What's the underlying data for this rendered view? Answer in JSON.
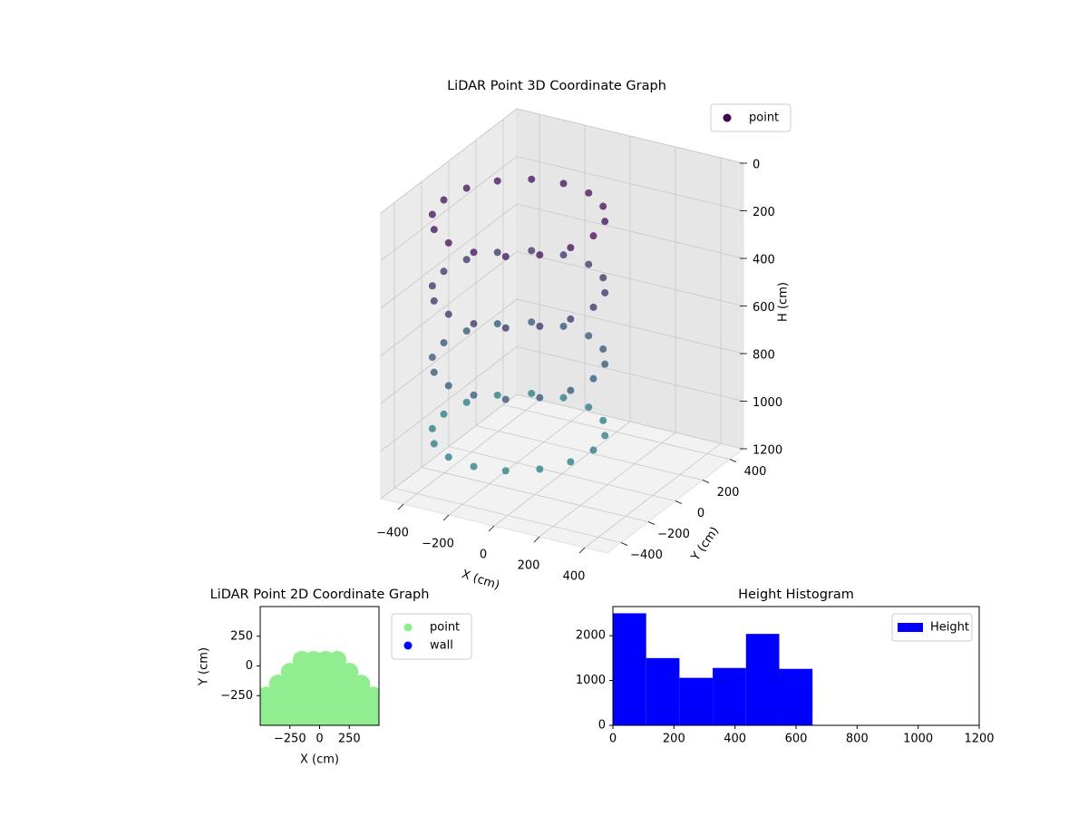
{
  "chart_data": [
    {
      "type": "scatter3d",
      "title": "LiDAR Point 3D Coordinate Graph",
      "xlabel": "X (cm)",
      "ylabel": "Y (cm)",
      "zlabel": "H (cm)",
      "xlim": [
        -500,
        500
      ],
      "ylim": [
        -500,
        500
      ],
      "zlim": [
        0,
        1200
      ],
      "z_inverted": true,
      "grid": true,
      "legend": "upper right",
      "xticks": [
        {
          "value": -400,
          "label": "−400"
        },
        {
          "value": -200,
          "label": "−200"
        },
        0,
        200,
        400
      ],
      "yticks": [
        {
          "value": -400,
          "label": "−400"
        },
        {
          "value": -200,
          "label": "−200"
        },
        0,
        200,
        400
      ],
      "zticks": [
        0,
        200,
        400,
        600,
        800,
        1000,
        1200
      ],
      "colormap": [
        "#440154",
        "#21918c"
      ],
      "series": [
        {
          "name": "point",
          "color": "#440154",
          "x": [
            210,
            185,
            113,
            6,
            -120,
            -246,
            -353,
            -425,
            -450,
            -425,
            -353,
            -246,
            -120,
            6,
            113,
            185,
            210,
            185,
            113,
            6,
            -120,
            -246,
            -353,
            -425,
            -450,
            -425,
            -353,
            -246,
            -120,
            6,
            113,
            185,
            210,
            185,
            113,
            6,
            -120,
            -246,
            -353,
            -425,
            -450,
            -425,
            -353,
            -246,
            -120,
            6,
            113,
            185,
            210,
            185,
            113,
            6,
            -120,
            -246,
            -353,
            -425,
            -450,
            -425,
            -353,
            -246,
            -120,
            6,
            113,
            185
          ],
          "y": [
            -120,
            6,
            113,
            185,
            210,
            185,
            113,
            6,
            -120,
            -246,
            -353,
            -425,
            -450,
            -425,
            -353,
            -246,
            -120,
            6,
            113,
            185,
            210,
            185,
            113,
            6,
            -120,
            -246,
            -353,
            -425,
            -450,
            -425,
            -353,
            -246,
            -120,
            6,
            113,
            185,
            210,
            185,
            113,
            6,
            -120,
            -246,
            -353,
            -425,
            -450,
            -425,
            -353,
            -246,
            -120,
            6,
            113,
            185,
            210,
            185,
            113,
            6,
            -120,
            -246,
            -353,
            -425,
            -450,
            -425,
            -353,
            -246
          ],
          "z": [
            100,
            100,
            100,
            100,
            100,
            100,
            100,
            100,
            100,
            100,
            100,
            100,
            100,
            100,
            100,
            100,
            400,
            400,
            400,
            400,
            400,
            400,
            400,
            400,
            400,
            400,
            400,
            400,
            400,
            400,
            400,
            400,
            700,
            700,
            700,
            700,
            700,
            700,
            700,
            700,
            700,
            700,
            700,
            700,
            700,
            700,
            700,
            700,
            1000,
            1000,
            1000,
            1000,
            1000,
            1000,
            1000,
            1000,
            1000,
            1000,
            1000,
            1000,
            1000,
            1000,
            1000,
            1000
          ]
        }
      ]
    },
    {
      "type": "scatter",
      "title": "LiDAR Point 2D Coordinate Graph",
      "xlabel": "X (cm)",
      "ylabel": "Y (cm)",
      "xlim": [
        -500,
        500
      ],
      "ylim": [
        -500,
        500
      ],
      "legend": "outside right",
      "xticks": [
        {
          "value": -250,
          "label": "−250"
        },
        0,
        250
      ],
      "yticks": [
        {
          "value": -250,
          "label": "−250"
        },
        0,
        250
      ],
      "series": [
        {
          "name": "point",
          "color": "#90ee90",
          "x": [
            -450,
            -450,
            -450,
            -350,
            -350,
            -350,
            -350,
            -250,
            -250,
            -250,
            -250,
            -250,
            -150,
            -150,
            -150,
            -150,
            -150,
            -150,
            -50,
            -50,
            -50,
            -50,
            -50,
            -50,
            50,
            50,
            50,
            50,
            50,
            50,
            150,
            150,
            150,
            150,
            150,
            150,
            250,
            250,
            250,
            250,
            250,
            350,
            350,
            350,
            350,
            450,
            450,
            450
          ],
          "y": [
            -450,
            -350,
            -250,
            -450,
            -350,
            -250,
            -150,
            -450,
            -350,
            -250,
            -150,
            -50,
            -450,
            -350,
            -250,
            -150,
            -50,
            50,
            -450,
            -350,
            -250,
            -150,
            -50,
            50,
            -450,
            -350,
            -250,
            -150,
            -50,
            50,
            -450,
            -350,
            -250,
            -150,
            -50,
            50,
            -450,
            -350,
            -250,
            -150,
            -50,
            -450,
            -350,
            -250,
            -150,
            -450,
            -350,
            -250
          ]
        },
        {
          "name": "wall",
          "color": "#0000ff",
          "x": [],
          "y": []
        }
      ]
    },
    {
      "type": "histogram",
      "title": "Height Histogram",
      "name": "Height",
      "color": "#0000ff",
      "legend": "upper right",
      "bins": [
        0,
        109,
        218,
        327,
        436,
        545,
        654
      ],
      "values": [
        2500,
        1500,
        1060,
        1280,
        2040,
        1260
      ],
      "xlim": [
        0,
        1200
      ],
      "ylim": [
        0,
        2650
      ],
      "xticks": [
        0,
        200,
        400,
        600,
        800,
        1000,
        1200
      ],
      "yticks": [
        0,
        1000,
        2000
      ]
    }
  ]
}
